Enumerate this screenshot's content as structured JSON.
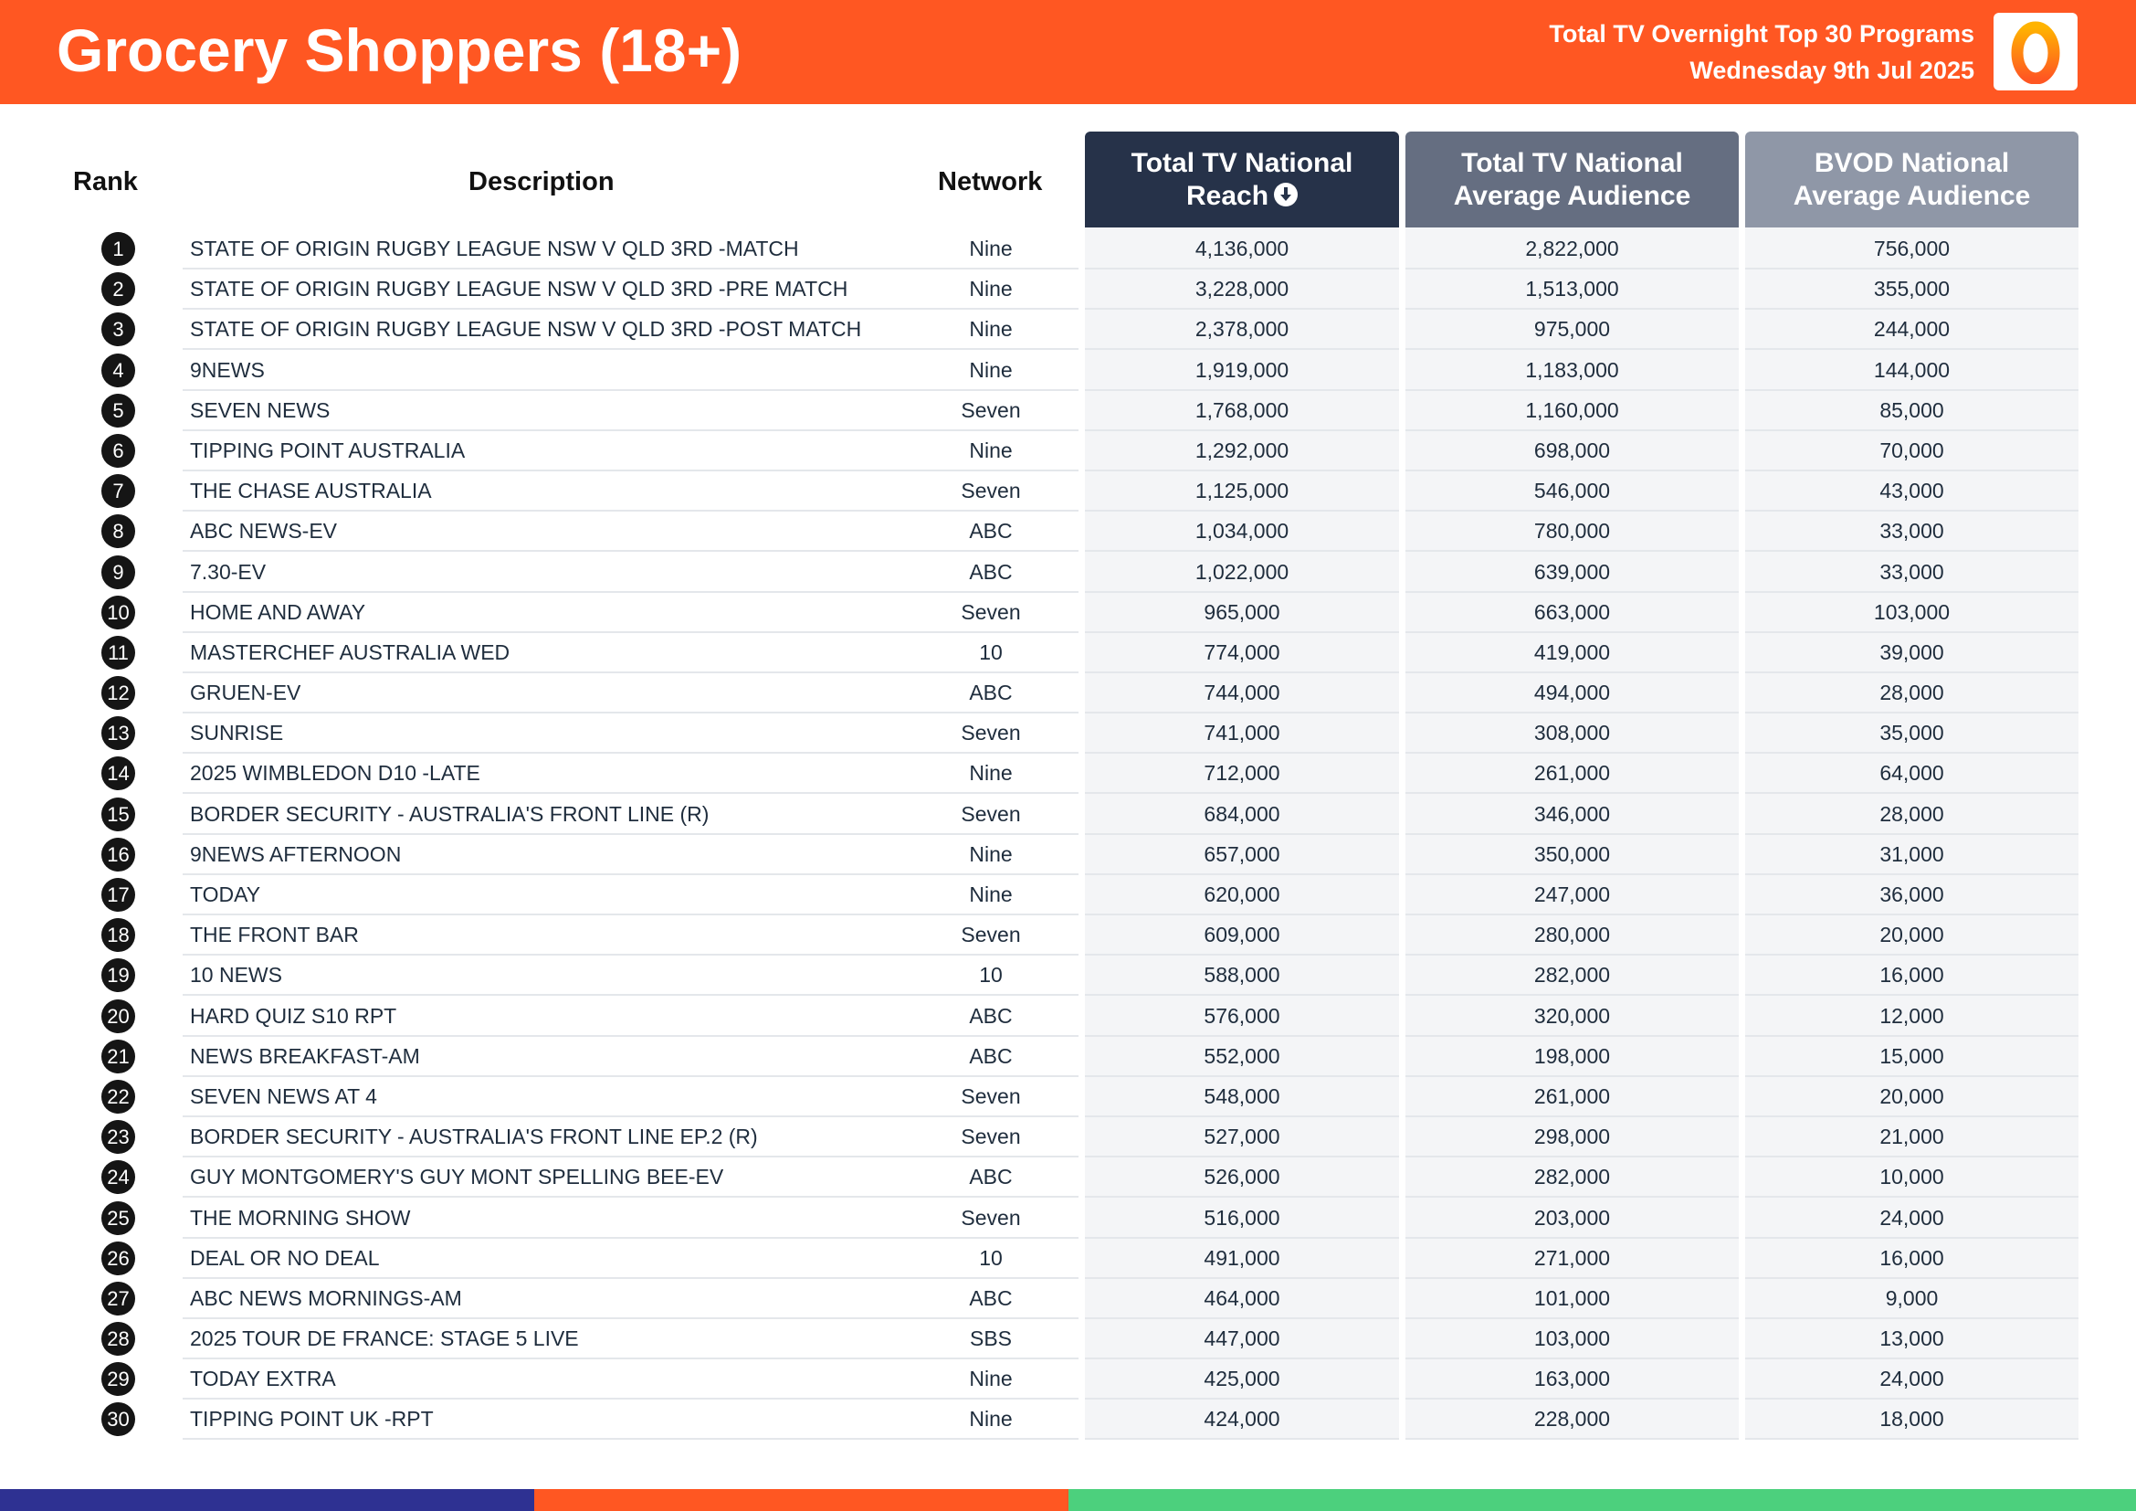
{
  "header": {
    "title": "Grocery Shoppers (18+)",
    "subtitle_line1": "Total TV Overnight Top 30 Programs",
    "subtitle_line2": "Wednesday 9th Jul 2025",
    "logo_icon": "oztam-zero-logo-icon"
  },
  "columns": {
    "rank": "Rank",
    "description": "Description",
    "network": "Network",
    "reach_line1": "Total TV National",
    "reach_line2": "Reach",
    "avg_line1": "Total TV National",
    "avg_line2": "Average Audience",
    "bvod_line1": "BVOD National",
    "bvod_line2": "Average Audience",
    "sort_icon": "sort-down-icon"
  },
  "colors": {
    "brand": "#ff5722",
    "reach_header": "#263249",
    "avg_header": "#656e81",
    "bvod_header": "#8f97a7",
    "footer": [
      "#2e3192",
      "#ff5722",
      "#4cd07d"
    ]
  },
  "rows": [
    {
      "rank": "1",
      "description": "STATE OF ORIGIN RUGBY LEAGUE NSW V QLD 3RD -MATCH",
      "network": "Nine",
      "reach": "4,136,000",
      "avg": "2,822,000",
      "bvod": "756,000"
    },
    {
      "rank": "2",
      "description": "STATE OF ORIGIN RUGBY LEAGUE NSW V QLD 3RD -PRE MATCH",
      "network": "Nine",
      "reach": "3,228,000",
      "avg": "1,513,000",
      "bvod": "355,000"
    },
    {
      "rank": "3",
      "description": "STATE OF ORIGIN RUGBY LEAGUE NSW V QLD 3RD -POST MATCH",
      "network": "Nine",
      "reach": "2,378,000",
      "avg": "975,000",
      "bvod": "244,000"
    },
    {
      "rank": "4",
      "description": "9NEWS",
      "network": "Nine",
      "reach": "1,919,000",
      "avg": "1,183,000",
      "bvod": "144,000"
    },
    {
      "rank": "5",
      "description": "SEVEN NEWS",
      "network": "Seven",
      "reach": "1,768,000",
      "avg": "1,160,000",
      "bvod": "85,000"
    },
    {
      "rank": "6",
      "description": "TIPPING POINT AUSTRALIA",
      "network": "Nine",
      "reach": "1,292,000",
      "avg": "698,000",
      "bvod": "70,000"
    },
    {
      "rank": "7",
      "description": "THE CHASE AUSTRALIA",
      "network": "Seven",
      "reach": "1,125,000",
      "avg": "546,000",
      "bvod": "43,000"
    },
    {
      "rank": "8",
      "description": "ABC NEWS-EV",
      "network": "ABC",
      "reach": "1,034,000",
      "avg": "780,000",
      "bvod": "33,000"
    },
    {
      "rank": "9",
      "description": "7.30-EV",
      "network": "ABC",
      "reach": "1,022,000",
      "avg": "639,000",
      "bvod": "33,000"
    },
    {
      "rank": "10",
      "description": "HOME AND AWAY",
      "network": "Seven",
      "reach": "965,000",
      "avg": "663,000",
      "bvod": "103,000"
    },
    {
      "rank": "11",
      "description": "MASTERCHEF AUSTRALIA WED",
      "network": "10",
      "reach": "774,000",
      "avg": "419,000",
      "bvod": "39,000"
    },
    {
      "rank": "12",
      "description": "GRUEN-EV",
      "network": "ABC",
      "reach": "744,000",
      "avg": "494,000",
      "bvod": "28,000"
    },
    {
      "rank": "13",
      "description": "SUNRISE",
      "network": "Seven",
      "reach": "741,000",
      "avg": "308,000",
      "bvod": "35,000"
    },
    {
      "rank": "14",
      "description": "2025 WIMBLEDON D10 -LATE",
      "network": "Nine",
      "reach": "712,000",
      "avg": "261,000",
      "bvod": "64,000"
    },
    {
      "rank": "15",
      "description": "BORDER SECURITY - AUSTRALIA'S FRONT LINE (R)",
      "network": "Seven",
      "reach": "684,000",
      "avg": "346,000",
      "bvod": "28,000"
    },
    {
      "rank": "16",
      "description": "9NEWS AFTERNOON",
      "network": "Nine",
      "reach": "657,000",
      "avg": "350,000",
      "bvod": "31,000"
    },
    {
      "rank": "17",
      "description": "TODAY",
      "network": "Nine",
      "reach": "620,000",
      "avg": "247,000",
      "bvod": "36,000"
    },
    {
      "rank": "18",
      "description": "THE FRONT BAR",
      "network": "Seven",
      "reach": "609,000",
      "avg": "280,000",
      "bvod": "20,000"
    },
    {
      "rank": "19",
      "description": "10 NEWS",
      "network": "10",
      "reach": "588,000",
      "avg": "282,000",
      "bvod": "16,000"
    },
    {
      "rank": "20",
      "description": "HARD QUIZ S10 RPT",
      "network": "ABC",
      "reach": "576,000",
      "avg": "320,000",
      "bvod": "12,000"
    },
    {
      "rank": "21",
      "description": "NEWS BREAKFAST-AM",
      "network": "ABC",
      "reach": "552,000",
      "avg": "198,000",
      "bvod": "15,000"
    },
    {
      "rank": "22",
      "description": "SEVEN NEWS AT 4",
      "network": "Seven",
      "reach": "548,000",
      "avg": "261,000",
      "bvod": "20,000"
    },
    {
      "rank": "23",
      "description": "BORDER SECURITY - AUSTRALIA'S FRONT LINE EP.2 (R)",
      "network": "Seven",
      "reach": "527,000",
      "avg": "298,000",
      "bvod": "21,000"
    },
    {
      "rank": "24",
      "description": "GUY MONTGOMERY'S GUY MONT SPELLING BEE-EV",
      "network": "ABC",
      "reach": "526,000",
      "avg": "282,000",
      "bvod": "10,000"
    },
    {
      "rank": "25",
      "description": "THE MORNING SHOW",
      "network": "Seven",
      "reach": "516,000",
      "avg": "203,000",
      "bvod": "24,000"
    },
    {
      "rank": "26",
      "description": "DEAL OR NO DEAL",
      "network": "10",
      "reach": "491,000",
      "avg": "271,000",
      "bvod": "16,000"
    },
    {
      "rank": "27",
      "description": "ABC NEWS MORNINGS-AM",
      "network": "ABC",
      "reach": "464,000",
      "avg": "101,000",
      "bvod": "9,000"
    },
    {
      "rank": "28",
      "description": "2025 TOUR DE FRANCE: STAGE 5 LIVE",
      "network": "SBS",
      "reach": "447,000",
      "avg": "103,000",
      "bvod": "13,000"
    },
    {
      "rank": "29",
      "description": "TODAY EXTRA",
      "network": "Nine",
      "reach": "425,000",
      "avg": "163,000",
      "bvod": "24,000"
    },
    {
      "rank": "30",
      "description": "TIPPING POINT UK -RPT",
      "network": "Nine",
      "reach": "424,000",
      "avg": "228,000",
      "bvod": "18,000"
    }
  ]
}
